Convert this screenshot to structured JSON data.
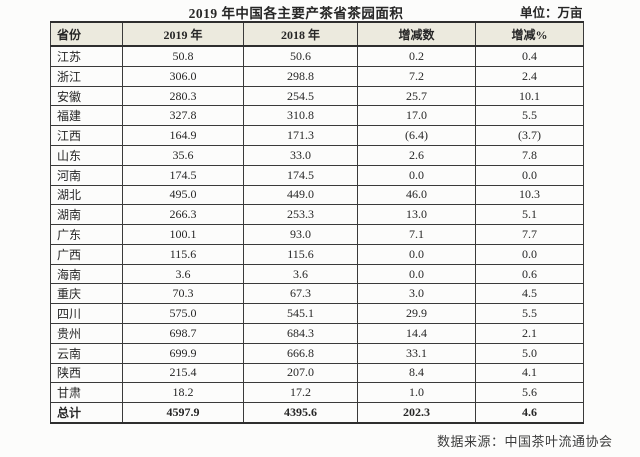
{
  "title": "2019 年中国各主要产茶省茶园面积",
  "unit_label": "单位：万亩",
  "source_label": "数据来源：中国茶叶流通协会",
  "table": {
    "columns": [
      "省份",
      "2019 年",
      "2018 年",
      "增减数",
      "增减%"
    ],
    "rows": [
      [
        "江苏",
        "50.8",
        "50.6",
        "0.2",
        "0.4"
      ],
      [
        "浙江",
        "306.0",
        "298.8",
        "7.2",
        "2.4"
      ],
      [
        "安徽",
        "280.3",
        "254.5",
        "25.7",
        "10.1"
      ],
      [
        "福建",
        "327.8",
        "310.8",
        "17.0",
        "5.5"
      ],
      [
        "江西",
        "164.9",
        "171.3",
        "(6.4)",
        "(3.7)"
      ],
      [
        "山东",
        "35.6",
        "33.0",
        "2.6",
        "7.8"
      ],
      [
        "河南",
        "174.5",
        "174.5",
        "0.0",
        "0.0"
      ],
      [
        "湖北",
        "495.0",
        "449.0",
        "46.0",
        "10.3"
      ],
      [
        "湖南",
        "266.3",
        "253.3",
        "13.0",
        "5.1"
      ],
      [
        "广东",
        "100.1",
        "93.0",
        "7.1",
        "7.7"
      ],
      [
        "广西",
        "115.6",
        "115.6",
        "0.0",
        "0.0"
      ],
      [
        "海南",
        "3.6",
        "3.6",
        "0.0",
        "0.6"
      ],
      [
        "重庆",
        "70.3",
        "67.3",
        "3.0",
        "4.5"
      ],
      [
        "四川",
        "575.0",
        "545.1",
        "29.9",
        "5.5"
      ],
      [
        "贵州",
        "698.7",
        "684.3",
        "14.4",
        "2.1"
      ],
      [
        "云南",
        "699.9",
        "666.8",
        "33.1",
        "5.0"
      ],
      [
        "陕西",
        "215.4",
        "207.0",
        "8.4",
        "4.1"
      ],
      [
        "甘肃",
        "18.2",
        "17.2",
        "1.0",
        "5.6"
      ]
    ],
    "total_row": [
      "总计",
      "4597.9",
      "4395.6",
      "202.3",
      "4.6"
    ]
  },
  "colors": {
    "header_bg": "#eceade",
    "border": "#3a3a3a",
    "border_dark": "#2e2e2e",
    "text": "#262626"
  }
}
